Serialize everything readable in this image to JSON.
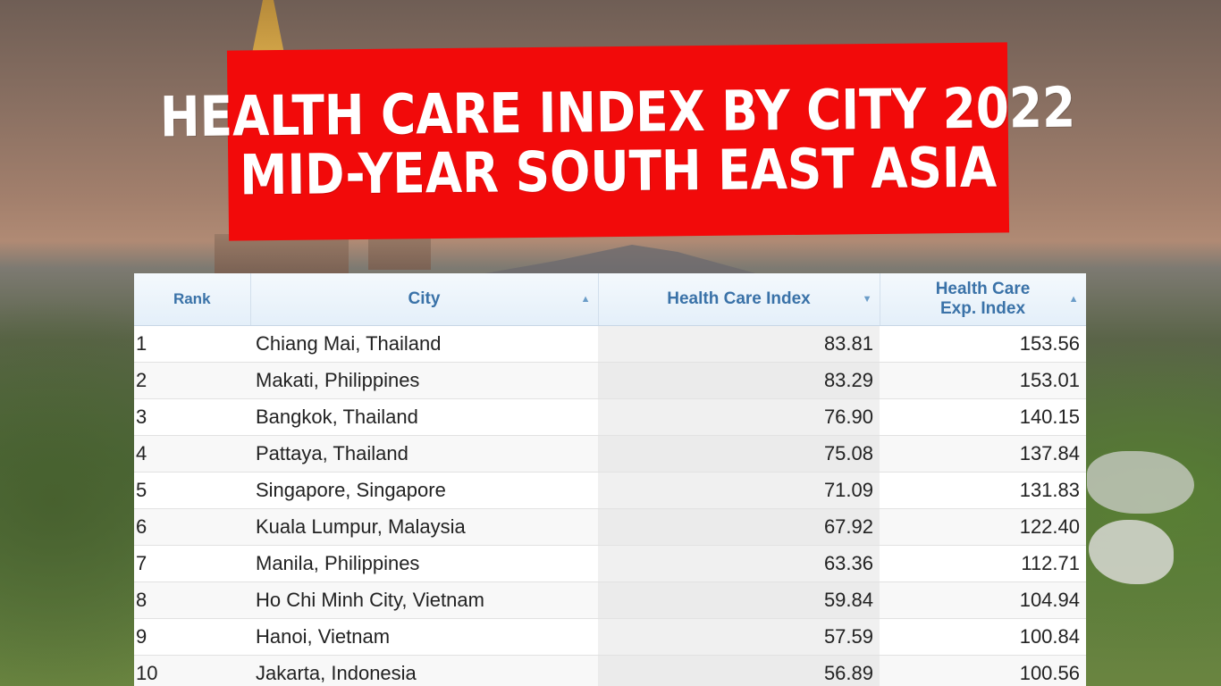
{
  "title": {
    "line1": "Health Care Index by City 2022",
    "line2": "Mid-Year South East Asia"
  },
  "table": {
    "headers": {
      "rank": "Rank",
      "city": "City",
      "health_care_index": "Health Care Index",
      "exp_index_line1": "Health Care",
      "exp_index_line2": "Exp. Index"
    },
    "sort_icons": {
      "city": "sort-asc-icon",
      "health_care_index": "sort-desc-icon",
      "exp_index": "sort-asc-icon"
    },
    "rows": [
      {
        "rank": "1",
        "city": "Chiang Mai, Thailand",
        "hci": "83.81",
        "exp": "153.56"
      },
      {
        "rank": "2",
        "city": "Makati, Philippines",
        "hci": "83.29",
        "exp": "153.01"
      },
      {
        "rank": "3",
        "city": "Bangkok, Thailand",
        "hci": "76.90",
        "exp": "140.15"
      },
      {
        "rank": "4",
        "city": "Pattaya, Thailand",
        "hci": "75.08",
        "exp": "137.84"
      },
      {
        "rank": "5",
        "city": "Singapore, Singapore",
        "hci": "71.09",
        "exp": "131.83"
      },
      {
        "rank": "6",
        "city": "Kuala Lumpur, Malaysia",
        "hci": "67.92",
        "exp": "122.40"
      },
      {
        "rank": "7",
        "city": "Manila, Philippines",
        "hci": "63.36",
        "exp": "112.71"
      },
      {
        "rank": "8",
        "city": "Ho Chi Minh City, Vietnam",
        "hci": "59.84",
        "exp": "104.94"
      },
      {
        "rank": "9",
        "city": "Hanoi, Vietnam",
        "hci": "57.59",
        "exp": "100.84"
      },
      {
        "rank": "10",
        "city": "Jakarta, Indonesia",
        "hci": "56.89",
        "exp": "100.56"
      }
    ]
  },
  "colors": {
    "banner": "#f20a0a",
    "header_text": "#3a72a8"
  }
}
